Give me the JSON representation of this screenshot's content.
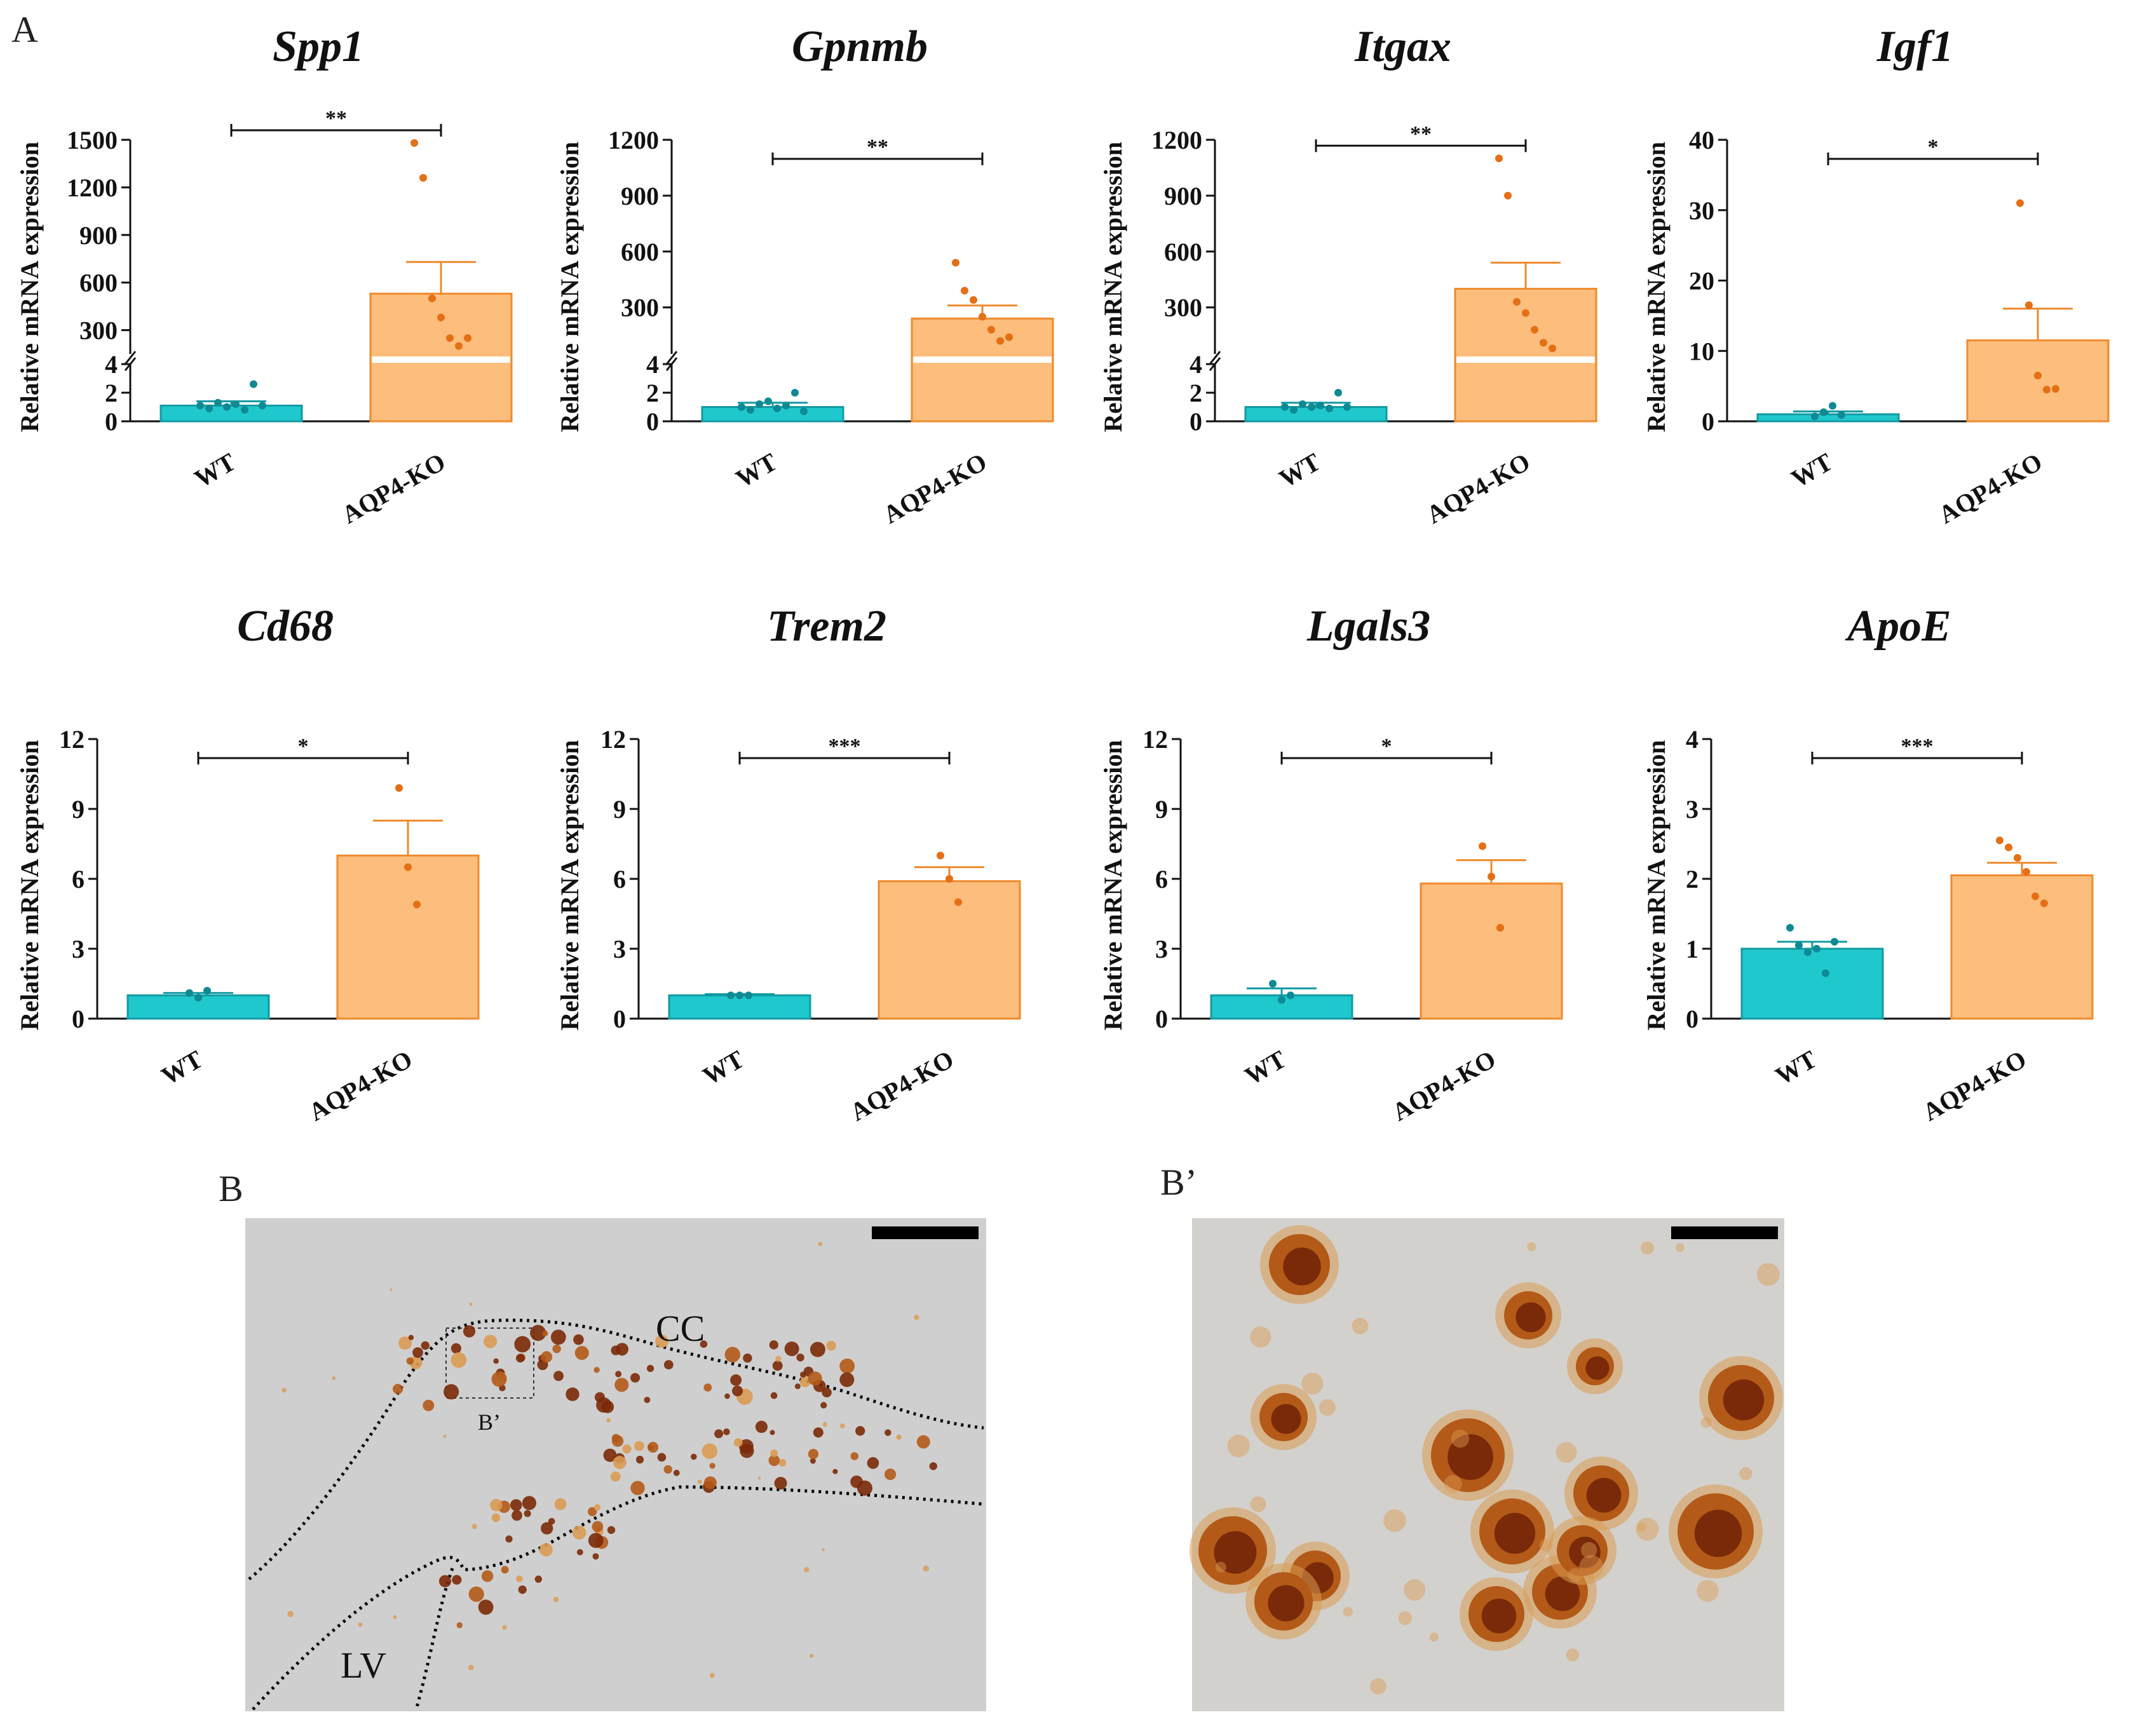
{
  "figure": {
    "panel_a_letter": "A",
    "panel_b_letter": "B",
    "panel_b_prime_letter": "B’",
    "micrograph_b": {
      "label_cc": "CC",
      "label_lv": "LV",
      "inset_label": "B’"
    }
  },
  "colors": {
    "wt_fill": "#1fc8cc",
    "wt_stroke": "#129aa2",
    "wt_dot": "#0e8a94",
    "ko_fill": "#fdbd7c",
    "ko_stroke": "#ee8a2e",
    "ko_dot": "#e56f14",
    "tissue_bg": "#cfcfcf",
    "stain_dark": "#7a2a08",
    "stain_mid": "#b35a18",
    "stain_light": "#d99a52"
  },
  "chart_data": [
    {
      "type": "bar",
      "title": "Spp1",
      "ylabel": "Relative mRNA expression",
      "categories": [
        "WT",
        "AQP4-KO"
      ],
      "broken_axis": true,
      "lower_ticks": [
        "0",
        "2",
        "4"
      ],
      "upper_ticks": [
        "300",
        "600",
        "900",
        "1200",
        "1500"
      ],
      "lower_range": [
        0,
        4
      ],
      "upper_range": [
        150,
        1500
      ],
      "values": [
        1.1,
        530
      ],
      "errors": [
        0.3,
        200
      ],
      "points": [
        [
          1.1,
          0.9,
          1.3,
          1.0,
          1.2,
          0.8,
          2.6,
          1.1
        ],
        [
          1480,
          1260,
          500,
          380,
          250,
          200,
          250
        ]
      ],
      "significance": "**"
    },
    {
      "type": "bar",
      "title": "Gpnmb",
      "ylabel": "Relative mRNA expression",
      "categories": [
        "WT",
        "AQP4-KO"
      ],
      "broken_axis": true,
      "lower_ticks": [
        "0",
        "2",
        "4"
      ],
      "upper_ticks": [
        "300",
        "600",
        "900",
        "1200"
      ],
      "lower_range": [
        0,
        4
      ],
      "upper_range": [
        50,
        1200
      ],
      "values": [
        1.0,
        240
      ],
      "errors": [
        0.3,
        70
      ],
      "points": [
        [
          1.0,
          0.8,
          1.2,
          1.4,
          0.9,
          1.1,
          2.0,
          0.7
        ],
        [
          540,
          390,
          340,
          250,
          180,
          120,
          140
        ]
      ],
      "significance": "**"
    },
    {
      "type": "bar",
      "title": "Itgax",
      "ylabel": "Relative mRNA expression",
      "categories": [
        "WT",
        "AQP4-KO"
      ],
      "broken_axis": true,
      "lower_ticks": [
        "0",
        "2",
        "4"
      ],
      "upper_ticks": [
        "300",
        "600",
        "900",
        "1200"
      ],
      "lower_range": [
        0,
        4
      ],
      "upper_range": [
        50,
        1200
      ],
      "values": [
        1.0,
        400
      ],
      "errors": [
        0.3,
        140
      ],
      "points": [
        [
          1.0,
          0.8,
          1.2,
          1.0,
          1.1,
          0.9,
          2.0,
          1.0
        ],
        [
          1100,
          900,
          330,
          270,
          180,
          110,
          80
        ]
      ],
      "significance": "**"
    },
    {
      "type": "bar",
      "title": "Igf1",
      "ylabel": "Relative mRNA expression",
      "categories": [
        "WT",
        "AQP4-KO"
      ],
      "broken_axis": false,
      "ticks": [
        "0",
        "10",
        "20",
        "30",
        "40"
      ],
      "ylim": [
        0,
        40
      ],
      "values": [
        1.0,
        11.5
      ],
      "errors": [
        0.4,
        4.5
      ],
      "points": [
        [
          0.7,
          1.3,
          2.2,
          0.9
        ],
        [
          31,
          16.5,
          6.5,
          4.5,
          4.6
        ]
      ],
      "significance": "*"
    },
    {
      "type": "bar",
      "title": "Cd68",
      "ylabel": "Relative mRNA expression",
      "categories": [
        "WT",
        "AQP4-KO"
      ],
      "broken_axis": false,
      "ticks": [
        "0",
        "3",
        "6",
        "9",
        "12"
      ],
      "ylim": [
        0,
        12
      ],
      "values": [
        1.0,
        7.0
      ],
      "errors": [
        0.1,
        1.5
      ],
      "points": [
        [
          1.1,
          0.9,
          1.2
        ],
        [
          9.9,
          6.5,
          4.9
        ]
      ],
      "significance": "*"
    },
    {
      "type": "bar",
      "title": "Trem2",
      "ylabel": "Relative mRNA expression",
      "categories": [
        "WT",
        "AQP4-KO"
      ],
      "broken_axis": false,
      "ticks": [
        "0",
        "3",
        "6",
        "9",
        "12"
      ],
      "ylim": [
        0,
        12
      ],
      "values": [
        1.0,
        5.9
      ],
      "errors": [
        0.05,
        0.6
      ],
      "points": [
        [
          1.0,
          1.0,
          1.0
        ],
        [
          7.0,
          6.0,
          5.0
        ]
      ],
      "significance": "***"
    },
    {
      "type": "bar",
      "title": "Lgals3",
      "ylabel": "Relative mRNA expression",
      "categories": [
        "WT",
        "AQP4-KO"
      ],
      "broken_axis": false,
      "ticks": [
        "0",
        "3",
        "6",
        "9",
        "12"
      ],
      "ylim": [
        0,
        12
      ],
      "values": [
        1.0,
        5.8
      ],
      "errors": [
        0.3,
        1.0
      ],
      "points": [
        [
          1.5,
          0.8,
          1.0
        ],
        [
          7.4,
          6.1,
          3.9
        ]
      ],
      "significance": "*"
    },
    {
      "type": "bar",
      "title": "ApoE",
      "ylabel": "Relative mRNA expression",
      "categories": [
        "WT",
        "AQP4-KO"
      ],
      "broken_axis": false,
      "ticks": [
        "0",
        "1",
        "2",
        "3",
        "4"
      ],
      "ylim": [
        0,
        4
      ],
      "values": [
        1.0,
        2.05
      ],
      "errors": [
        0.1,
        0.18
      ],
      "points": [
        [
          1.3,
          1.05,
          0.95,
          1.0,
          0.65,
          1.1
        ],
        [
          2.55,
          2.45,
          2.3,
          2.1,
          1.75,
          1.65
        ]
      ],
      "significance": "***"
    }
  ]
}
